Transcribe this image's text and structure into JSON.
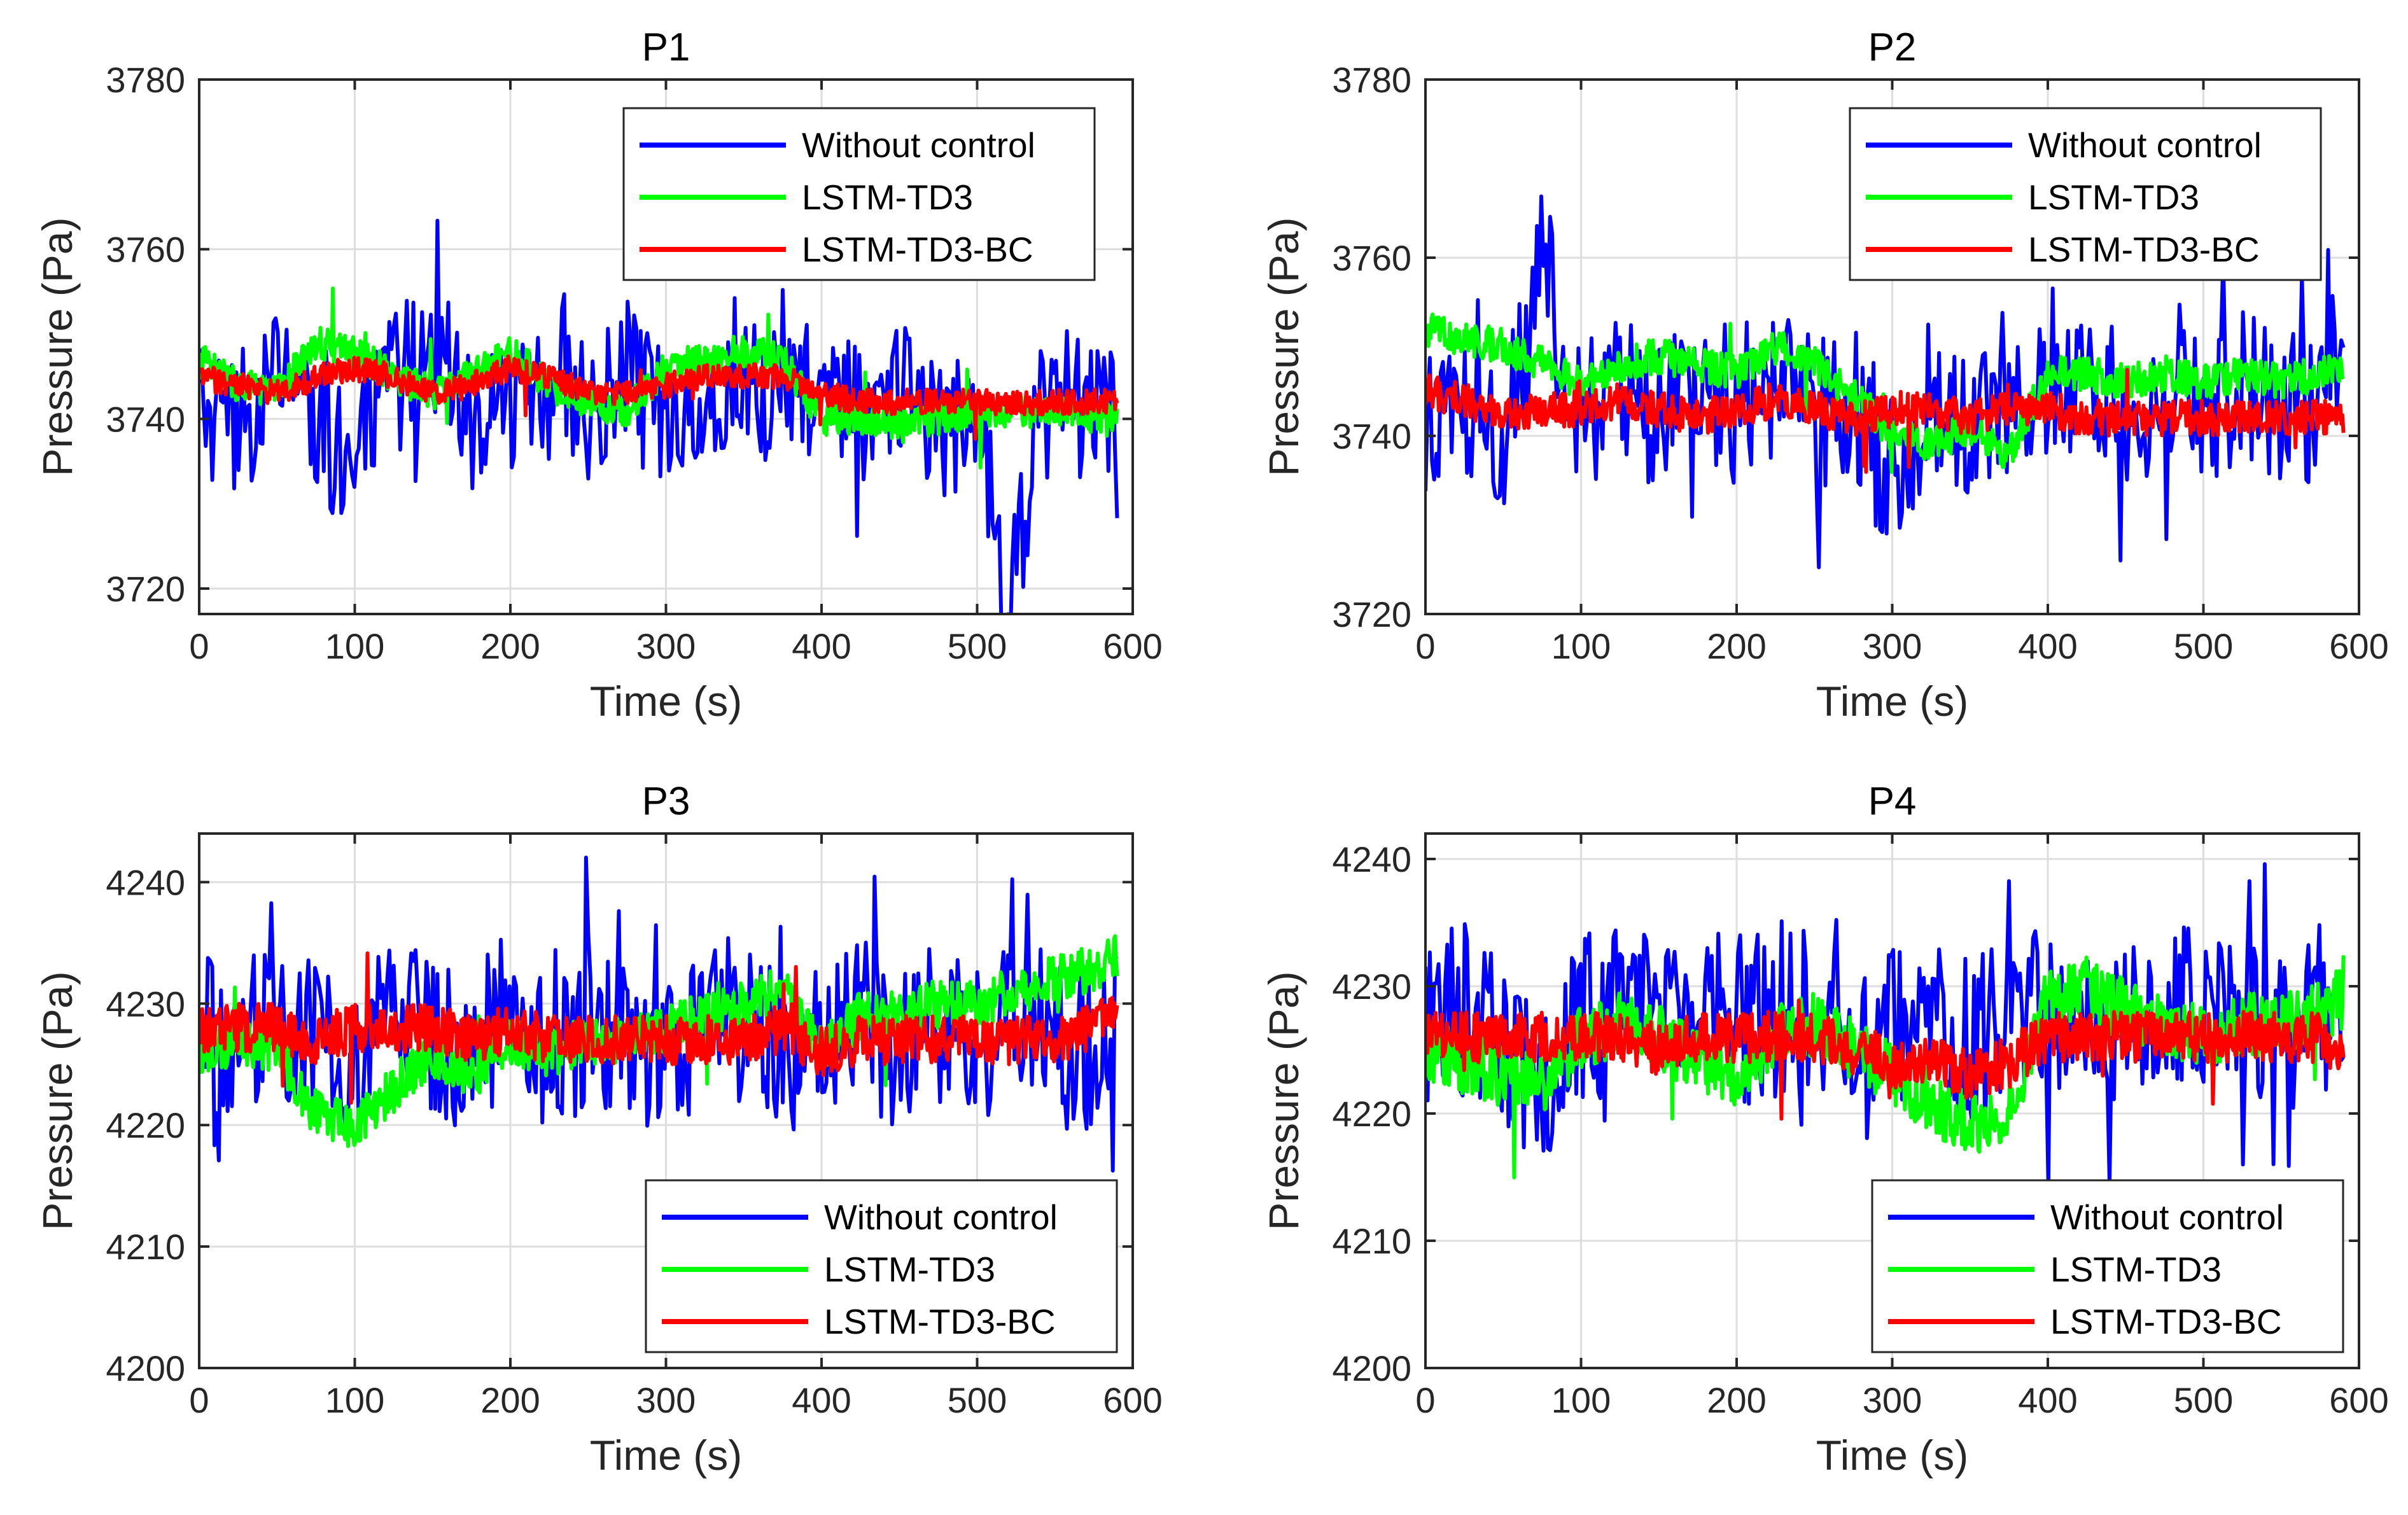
{
  "series_colors": {
    "Without control": "#0000ff",
    "LSTM-TD3": "#00ff00",
    "LSTM-TD3-BC": "#ff0000"
  },
  "chart_data": [
    {
      "type": "line",
      "title": "P1",
      "xlabel": "Time (s)",
      "ylabel": "Pressure (Pa)",
      "xlim": [
        0,
        600
      ],
      "ylim": [
        3717,
        3780
      ],
      "xticks": [
        0,
        100,
        200,
        300,
        400,
        500,
        600
      ],
      "yticks": [
        3720,
        3740,
        3760,
        3780
      ],
      "grid": true,
      "legend_position": "top-right",
      "series": [
        {
          "name": "Without control",
          "x": [
            0,
            25,
            50,
            75,
            100,
            125,
            150,
            175,
            200,
            225,
            250,
            275,
            300,
            325,
            350,
            375,
            400,
            425,
            450,
            475,
            500,
            520,
            540,
            560,
            590
          ],
          "y": [
            3742,
            3738,
            3745,
            3741,
            3735,
            3744,
            3750,
            3739,
            3742,
            3745,
            3741,
            3746,
            3740,
            3743,
            3747,
            3741,
            3744,
            3740,
            3745,
            3738,
            3742,
            3717,
            3740,
            3743,
            3741
          ],
          "band": [
            7,
            9,
            8,
            10,
            9,
            9,
            9,
            8,
            8,
            8,
            8,
            8,
            8,
            8,
            9,
            9,
            8,
            8,
            8,
            8,
            8,
            8,
            8,
            8,
            8
          ]
        },
        {
          "name": "LSTM-TD3",
          "x": [
            0,
            25,
            50,
            75,
            100,
            125,
            150,
            175,
            200,
            225,
            250,
            275,
            300,
            325,
            350,
            375,
            400,
            425,
            450,
            475,
            500,
            525,
            550,
            575,
            590
          ],
          "y": [
            3747,
            3744,
            3743,
            3749,
            3748,
            3745,
            3743,
            3745,
            3748,
            3744,
            3742,
            3741,
            3746,
            3747,
            3748,
            3747,
            3740,
            3740,
            3739,
            3740,
            3741,
            3741,
            3741,
            3740,
            3740
          ],
          "band": [
            2,
            2,
            2,
            2,
            2,
            2,
            2,
            2,
            2,
            2,
            2,
            2,
            2,
            2,
            2,
            2,
            2,
            2,
            2,
            2,
            2,
            2,
            2,
            2,
            2
          ]
        },
        {
          "name": "LSTM-TD3-BC",
          "x": [
            0,
            25,
            50,
            75,
            100,
            125,
            150,
            175,
            200,
            225,
            250,
            275,
            300,
            325,
            350,
            375,
            400,
            425,
            450,
            475,
            500,
            525,
            550,
            575,
            590
          ],
          "y": [
            3745,
            3744,
            3743,
            3745,
            3746,
            3745,
            3743,
            3744,
            3746,
            3745,
            3743,
            3743,
            3744,
            3745,
            3745,
            3745,
            3743,
            3742,
            3742,
            3742,
            3742,
            3742,
            3742,
            3742,
            3742
          ],
          "band": [
            1.5,
            1.5,
            1.5,
            1.5,
            1.5,
            1.5,
            1.5,
            1.5,
            1.5,
            1.5,
            1.5,
            1.5,
            1.5,
            1.5,
            1.5,
            1.5,
            1.5,
            1.5,
            1.5,
            1.5,
            1.5,
            1.5,
            1.5,
            1.5,
            1.5
          ]
        }
      ]
    },
    {
      "type": "line",
      "title": "P2",
      "xlabel": "Time (s)",
      "ylabel": "Pressure (Pa)",
      "xlim": [
        0,
        600
      ],
      "ylim": [
        3720,
        3780
      ],
      "xticks": [
        0,
        100,
        200,
        300,
        400,
        500,
        600
      ],
      "yticks": [
        3720,
        3740,
        3760,
        3780
      ],
      "grid": true,
      "legend_position": "top-right",
      "series": [
        {
          "name": "Without control",
          "x": [
            0,
            25,
            50,
            75,
            100,
            125,
            150,
            175,
            200,
            225,
            250,
            275,
            300,
            325,
            350,
            375,
            400,
            425,
            450,
            475,
            500,
            525,
            550,
            575,
            590
          ],
          "y": [
            3741,
            3744,
            3738,
            3760,
            3742,
            3745,
            3741,
            3747,
            3743,
            3746,
            3742,
            3744,
            3735,
            3745,
            3741,
            3747,
            3744,
            3746,
            3742,
            3745,
            3743,
            3746,
            3742,
            3744,
            3750
          ],
          "band": [
            8,
            8,
            9,
            9,
            9,
            9,
            9,
            9,
            9,
            9,
            9,
            9,
            9,
            9,
            9,
            9,
            9,
            9,
            9,
            9,
            9,
            9,
            9,
            9,
            9
          ]
        },
        {
          "name": "LSTM-TD3",
          "x": [
            0,
            25,
            50,
            75,
            100,
            125,
            150,
            175,
            200,
            225,
            250,
            275,
            300,
            325,
            350,
            375,
            400,
            425,
            450,
            475,
            500,
            525,
            550,
            575,
            590
          ],
          "y": [
            3752,
            3751,
            3750,
            3748,
            3746,
            3748,
            3749,
            3748,
            3747,
            3750,
            3748,
            3745,
            3740,
            3739,
            3741,
            3738,
            3747,
            3747,
            3746,
            3747,
            3746,
            3747,
            3746,
            3747,
            3747
          ],
          "band": [
            2,
            2,
            2,
            2,
            2,
            2,
            2,
            2,
            2,
            2,
            2,
            2,
            2,
            2,
            2,
            2,
            2,
            2,
            2,
            2,
            2,
            2,
            2,
            2,
            2
          ]
        },
        {
          "name": "LSTM-TD3-BC",
          "x": [
            0,
            25,
            50,
            75,
            100,
            125,
            150,
            175,
            200,
            225,
            250,
            275,
            300,
            325,
            350,
            375,
            400,
            425,
            450,
            475,
            500,
            525,
            550,
            575,
            590
          ],
          "y": [
            3745,
            3744,
            3742,
            3743,
            3743,
            3744,
            3743,
            3742,
            3743,
            3744,
            3743,
            3742,
            3743,
            3743,
            3742,
            3743,
            3743,
            3742,
            3742,
            3742,
            3742,
            3742,
            3742,
            3742,
            3742
          ],
          "band": [
            2,
            2,
            2,
            2,
            2,
            2,
            2,
            2,
            2,
            2,
            2,
            2,
            2,
            2,
            2,
            2,
            2,
            2,
            2,
            2,
            2,
            2,
            2,
            2,
            2
          ]
        }
      ]
    },
    {
      "type": "line",
      "title": "P3",
      "xlabel": "Time (s)",
      "ylabel": "Pressure (Pa)",
      "xlim": [
        0,
        600
      ],
      "ylim": [
        4200,
        4244
      ],
      "xticks": [
        0,
        100,
        200,
        300,
        400,
        500,
        600
      ],
      "yticks": [
        4200,
        4210,
        4220,
        4230,
        4240
      ],
      "grid": true,
      "legend_position": "bottom-right",
      "series": [
        {
          "name": "Without control",
          "x": [
            0,
            25,
            50,
            75,
            100,
            125,
            150,
            175,
            200,
            225,
            250,
            275,
            300,
            325,
            350,
            375,
            400,
            425,
            450,
            475,
            500,
            525,
            550,
            575,
            590
          ],
          "y": [
            4228,
            4226,
            4229,
            4227,
            4224,
            4229,
            4228,
            4226,
            4230,
            4225,
            4229,
            4227,
            4226,
            4228,
            4229,
            4226,
            4227,
            4229,
            4226,
            4228,
            4227,
            4229,
            4227,
            4226,
            4228
          ],
          "band": [
            6,
            7,
            7,
            7,
            7,
            7,
            7,
            7,
            7,
            7,
            7,
            7,
            7,
            7,
            7,
            7,
            7,
            7,
            7,
            7,
            7,
            7,
            7,
            7,
            7
          ]
        },
        {
          "name": "LSTM-TD3",
          "x": [
            0,
            25,
            50,
            75,
            100,
            125,
            150,
            175,
            200,
            225,
            250,
            275,
            300,
            325,
            350,
            375,
            400,
            425,
            450,
            475,
            500,
            525,
            550,
            575,
            590
          ],
          "y": [
            4226,
            4227,
            4226,
            4221,
            4220,
            4223,
            4226,
            4224,
            4227,
            4226,
            4227,
            4227,
            4228,
            4229,
            4230,
            4231,
            4226,
            4229,
            4229,
            4230,
            4230,
            4231,
            4232,
            4233,
            4234
          ],
          "band": [
            2,
            2,
            2,
            2,
            2,
            2,
            2,
            2,
            2,
            2,
            2,
            2,
            2,
            2,
            2,
            2,
            2,
            2,
            2,
            2,
            2,
            2,
            2,
            2,
            2
          ]
        },
        {
          "name": "LSTM-TD3-BC",
          "x": [
            0,
            25,
            50,
            75,
            100,
            125,
            150,
            175,
            200,
            225,
            250,
            275,
            300,
            325,
            350,
            375,
            400,
            425,
            450,
            475,
            500,
            525,
            550,
            575,
            590
          ],
          "y": [
            4228,
            4228,
            4228,
            4227,
            4228,
            4228,
            4228,
            4227,
            4228,
            4227,
            4227,
            4227,
            4227,
            4227,
            4227,
            4228,
            4226,
            4227,
            4227,
            4227,
            4227,
            4227,
            4227,
            4228,
            4229
          ],
          "band": [
            2,
            2,
            2,
            2,
            2,
            2,
            2,
            2,
            2,
            2,
            2,
            2,
            2,
            2,
            2,
            2,
            2,
            2,
            2,
            2,
            2,
            2,
            2,
            2,
            2
          ]
        }
      ]
    },
    {
      "type": "line",
      "title": "P4",
      "xlabel": "Time (s)",
      "ylabel": "Pressure (Pa)",
      "xlim": [
        0,
        600
      ],
      "ylim": [
        4200,
        4242
      ],
      "xticks": [
        0,
        100,
        200,
        300,
        400,
        500,
        600
      ],
      "yticks": [
        4200,
        4210,
        4220,
        4230,
        4240
      ],
      "grid": true,
      "legend_position": "bottom-right",
      "series": [
        {
          "name": "Without control",
          "x": [
            0,
            25,
            50,
            75,
            100,
            125,
            150,
            175,
            200,
            225,
            250,
            275,
            300,
            325,
            350,
            375,
            400,
            425,
            450,
            475,
            500,
            525,
            550,
            575,
            590
          ],
          "y": [
            4227,
            4228,
            4226,
            4220,
            4227,
            4229,
            4226,
            4230,
            4227,
            4228,
            4229,
            4226,
            4228,
            4227,
            4226,
            4229,
            4227,
            4228,
            4226,
            4229,
            4228,
            4229,
            4227,
            4228,
            4227
          ],
          "band": [
            7,
            7,
            7,
            7,
            7,
            7,
            7,
            7,
            7,
            7,
            7,
            7,
            7,
            7,
            7,
            7,
            7,
            7,
            7,
            7,
            7,
            7,
            7,
            7,
            7
          ]
        },
        {
          "name": "LSTM-TD3",
          "x": [
            0,
            25,
            50,
            75,
            100,
            125,
            150,
            175,
            200,
            225,
            250,
            275,
            300,
            325,
            350,
            375,
            400,
            425,
            450,
            475,
            500,
            525,
            550,
            575,
            590
          ],
          "y": [
            4225,
            4224,
            4223,
            4222,
            4226,
            4227,
            4226,
            4224,
            4223,
            4226,
            4227,
            4225,
            4223,
            4221,
            4219,
            4220,
            4229,
            4230,
            4228,
            4227,
            4226,
            4227,
            4227,
            4228,
            4229
          ],
          "band": [
            2.5,
            2.5,
            2.5,
            2.5,
            2.5,
            2.5,
            2.5,
            2.5,
            2.5,
            2.5,
            2.5,
            2.5,
            2.5,
            2.5,
            2.5,
            2.5,
            2.5,
            2.5,
            2.5,
            2.5,
            2.5,
            2.5,
            2.5,
            2.5,
            2.5
          ]
        },
        {
          "name": "LSTM-TD3-BC",
          "x": [
            0,
            25,
            50,
            75,
            100,
            125,
            150,
            175,
            200,
            225,
            250,
            275,
            300,
            325,
            350,
            375,
            400,
            425,
            450,
            475,
            500,
            525,
            550,
            575,
            590
          ],
          "y": [
            4226,
            4226,
            4226,
            4226,
            4226,
            4226,
            4225,
            4226,
            4226,
            4226,
            4226,
            4225,
            4224,
            4224,
            4223,
            4224,
            4226,
            4226,
            4226,
            4226,
            4226,
            4226,
            4226,
            4226,
            4225
          ],
          "band": [
            2,
            2,
            2,
            2,
            2,
            2,
            2,
            2,
            2,
            2,
            2,
            2,
            2,
            2,
            2,
            2,
            2,
            2,
            2,
            2,
            2,
            2,
            2,
            2,
            2
          ]
        }
      ]
    }
  ]
}
